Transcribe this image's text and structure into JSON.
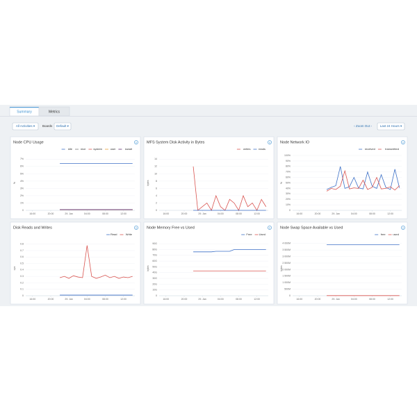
{
  "tabs": [
    "Summary",
    "Metrics"
  ],
  "toolbar": {
    "activities": "All Activities ▾",
    "boards_label": "Boards",
    "board": "Default ▾",
    "zoom": "‹ Zoom Out ›",
    "range": "Last 24 Hours ▾"
  },
  "panels": [
    {
      "title": "Node CPU Usage",
      "y_label": "%",
      "x": [
        6,
        7,
        8,
        9,
        10,
        11,
        12,
        13,
        14,
        15,
        16,
        17,
        18,
        19,
        20,
        21,
        22
      ],
      "xlim": [
        -1.5,
        22.5
      ],
      "xticks": [
        {
          "value": 0,
          "label": "16:00"
        },
        {
          "value": 4,
          "label": "20:00"
        },
        {
          "value": 8,
          "label": "29. Jan"
        },
        {
          "value": 12,
          "label": "04:00"
        },
        {
          "value": 16,
          "label": "08:00"
        },
        {
          "value": 20,
          "label": "12:00"
        }
      ],
      "ylim": [
        0,
        7.5
      ],
      "yticks": [
        0,
        {
          "value": 1,
          "label": "1%"
        },
        {
          "value": 2,
          "label": "2%"
        },
        {
          "value": 3,
          "label": "3%"
        },
        {
          "value": 4,
          "label": "4%"
        },
        {
          "value": 5,
          "label": "5%"
        },
        {
          "value": 6,
          "label": "6%"
        },
        {
          "value": 7,
          "label": "7%"
        }
      ],
      "series": [
        {
          "name": "idle",
          "color": "#3b6fc6",
          "values": [
            6.4,
            6.4,
            6.4,
            6.4,
            6.4,
            6.4,
            6.4,
            6.4,
            6.4,
            6.4,
            6.4,
            6.4,
            6.4,
            6.4,
            6.4,
            6.4,
            6.4
          ]
        },
        {
          "name": "nice",
          "color": "#7a7a7a",
          "values": [
            0.1,
            0.1,
            0.1,
            0.1,
            0.1,
            0.1,
            0.1,
            0.1,
            0.1,
            0.1,
            0.1,
            0.1,
            0.1,
            0.1,
            0.1,
            0.1,
            0.1
          ]
        },
        {
          "name": "system",
          "color": "#d9534f",
          "values": [
            0.1,
            0.1,
            0.1,
            0.1,
            0.1,
            0.1,
            0.1,
            0.1,
            0.1,
            0.1,
            0.1,
            0.1,
            0.1,
            0.1,
            0.1,
            0.1,
            0.1
          ]
        },
        {
          "name": "user",
          "color": "#e8a33a",
          "values": [
            0.1,
            0.1,
            0.1,
            0.1,
            0.1,
            0.1,
            0.1,
            0.1,
            0.1,
            0.1,
            0.1,
            0.1,
            0.1,
            0.1,
            0.1,
            0.1,
            0.1
          ]
        },
        {
          "name": "iowait",
          "color": "#5b2a6e",
          "values": [
            0.1,
            0.1,
            0.1,
            0.1,
            0.1,
            0.1,
            0.1,
            0.1,
            0.1,
            0.1,
            0.1,
            0.1,
            0.1,
            0.1,
            0.1,
            0.1,
            0.1
          ]
        }
      ]
    },
    {
      "title": "MFS System Disk Activity in Bytes",
      "y_label": "bytes",
      "x": [
        6,
        7,
        8,
        9,
        10,
        11,
        12,
        13,
        14,
        15,
        16,
        17,
        18,
        19,
        20,
        21,
        22
      ],
      "xlim": [
        -1.5,
        22.5
      ],
      "xticks": [
        {
          "value": 0,
          "label": "16:00"
        },
        {
          "value": 4,
          "label": "20:00"
        },
        {
          "value": 8,
          "label": "29. Jan"
        },
        {
          "value": 12,
          "label": "04:00"
        },
        {
          "value": 16,
          "label": "08:00"
        },
        {
          "value": 20,
          "label": "12:00"
        }
      ],
      "ylim": [
        0,
        15
      ],
      "yticks": [
        0,
        2,
        4,
        6,
        8,
        10,
        12,
        14
      ],
      "series": [
        {
          "name": "writes",
          "color": "#d9534f",
          "values": [
            12,
            0,
            1,
            2,
            0,
            4,
            1,
            0,
            3,
            2,
            0,
            4,
            1,
            2,
            0,
            3,
            1
          ]
        },
        {
          "name": "reads",
          "color": "#3b6fc6",
          "values": [
            0,
            0,
            0,
            0,
            0,
            0,
            0,
            0,
            0,
            0,
            0,
            0,
            0,
            0,
            0,
            0,
            0
          ]
        }
      ]
    },
    {
      "title": "Node Network IO",
      "y_label": "%",
      "x": [
        6,
        7,
        8,
        9,
        10,
        11,
        12,
        13,
        14,
        15,
        16,
        17,
        18,
        19,
        20,
        21,
        22
      ],
      "xlim": [
        -1.5,
        22.5
      ],
      "xticks": [
        {
          "value": 0,
          "label": "16:00"
        },
        {
          "value": 4,
          "label": "20:00"
        },
        {
          "value": 8,
          "label": "29. Jan"
        },
        {
          "value": 12,
          "label": "04:00"
        },
        {
          "value": 16,
          "label": "08:00"
        },
        {
          "value": 20,
          "label": "12:00"
        }
      ],
      "ylim": [
        0,
        100
      ],
      "yticks": [
        0,
        {
          "value": 10,
          "label": "10%"
        },
        {
          "value": 20,
          "label": "20%"
        },
        {
          "value": 30,
          "label": "30%"
        },
        {
          "value": 40,
          "label": "40%"
        },
        {
          "value": 50,
          "label": "50%"
        },
        {
          "value": 60,
          "label": "60%"
        },
        {
          "value": 70,
          "label": "70%"
        },
        {
          "value": 80,
          "label": "80%"
        },
        {
          "value": 90,
          "label": "90%"
        },
        {
          "value": 100,
          "label": "100%"
        }
      ],
      "series": [
        {
          "name": "received",
          "color": "#3b6fc6",
          "values": [
            38,
            42,
            45,
            80,
            40,
            43,
            60,
            41,
            39,
            70,
            44,
            40,
            65,
            42,
            38,
            75,
            41
          ]
        },
        {
          "name": "transmitted",
          "color": "#d9534f",
          "values": [
            35,
            40,
            38,
            44,
            72,
            39,
            41,
            40,
            55,
            38,
            42,
            60,
            39,
            40,
            43,
            37,
            45
          ]
        }
      ]
    },
    {
      "title": "Disk Reads and Writes",
      "y_label": "ops",
      "x": [
        6,
        7,
        8,
        9,
        10,
        11,
        12,
        13,
        14,
        15,
        16,
        17,
        18,
        19,
        20,
        21,
        22
      ],
      "xlim": [
        -1.5,
        22.5
      ],
      "xticks": [
        {
          "value": 0,
          "label": "16:00"
        },
        {
          "value": 4,
          "label": "20:00"
        },
        {
          "value": 8,
          "label": "29. Jan"
        },
        {
          "value": 12,
          "label": "04:00"
        },
        {
          "value": 16,
          "label": "08:00"
        },
        {
          "value": 20,
          "label": "12:00"
        }
      ],
      "ylim": [
        0,
        0.85
      ],
      "yticks": [
        0,
        0.1,
        0.2,
        0.3,
        0.4,
        0.5,
        0.6,
        0.7,
        0.8
      ],
      "series": [
        {
          "name": "Read",
          "color": "#3b6fc6",
          "values": [
            0.01,
            0.01,
            0.01,
            0.01,
            0.01,
            0.01,
            0.01,
            0.01,
            0.01,
            0.01,
            0.01,
            0.01,
            0.01,
            0.01,
            0.01,
            0.01,
            0.01
          ]
        },
        {
          "name": "Write",
          "color": "#d9534f",
          "values": [
            0.28,
            0.3,
            0.27,
            0.31,
            0.29,
            0.28,
            0.78,
            0.3,
            0.27,
            0.29,
            0.32,
            0.28,
            0.3,
            0.27,
            0.29,
            0.28,
            0.3
          ]
        }
      ]
    },
    {
      "title": "Node Memory Free vs Used",
      "y_label": "bytes",
      "x": [
        6,
        7,
        8,
        9,
        10,
        11,
        12,
        13,
        14,
        15,
        16,
        17,
        18,
        19,
        20,
        21,
        22
      ],
      "xlim": [
        -1.5,
        22.5
      ],
      "xticks": [
        {
          "value": 0,
          "label": "16:00"
        },
        {
          "value": 4,
          "label": "20:00"
        },
        {
          "value": 8,
          "label": "29. Jan"
        },
        {
          "value": 12,
          "label": "04:00"
        },
        {
          "value": 16,
          "label": "08:00"
        },
        {
          "value": 20,
          "label": "12:00"
        }
      ],
      "ylim": [
        0,
        95
      ],
      "yticks": [
        0,
        {
          "value": 10,
          "label": "10G"
        },
        {
          "value": 20,
          "label": "20G"
        },
        {
          "value": 30,
          "label": "30G"
        },
        {
          "value": 40,
          "label": "40G"
        },
        {
          "value": 50,
          "label": "50G"
        },
        {
          "value": 60,
          "label": "60G"
        },
        {
          "value": 70,
          "label": "70G"
        },
        {
          "value": 80,
          "label": "80G"
        },
        {
          "value": 90,
          "label": "90G"
        }
      ],
      "series": [
        {
          "name": "Free",
          "color": "#3b6fc6",
          "values": [
            76,
            76,
            76,
            76,
            76,
            77,
            77,
            77,
            77,
            80,
            80,
            80,
            80,
            80,
            80,
            80,
            80
          ]
        },
        {
          "name": "Used",
          "color": "#d9534f",
          "values": [
            43,
            43,
            43,
            43,
            43,
            43,
            43,
            43,
            43,
            43,
            43,
            43,
            43,
            43,
            43,
            43,
            43
          ]
        }
      ]
    },
    {
      "title": "Node Swap Space Available vs Used",
      "y_label": "bytes",
      "x": [
        6,
        7,
        8,
        9,
        10,
        11,
        12,
        13,
        14,
        15,
        16,
        17,
        18,
        19,
        20,
        21,
        22
      ],
      "xlim": [
        -1.5,
        22.5
      ],
      "xticks": [
        {
          "value": 0,
          "label": "16:00"
        },
        {
          "value": 4,
          "label": "20:00"
        },
        {
          "value": 8,
          "label": "29. Jan"
        },
        {
          "value": 12,
          "label": "04:00"
        },
        {
          "value": 16,
          "label": "08:00"
        },
        {
          "value": 20,
          "label": "12:00"
        }
      ],
      "ylim": [
        0,
        4200
      ],
      "yticks": [
        0,
        {
          "value": 500,
          "label": "500M"
        },
        {
          "value": 1000,
          "label": "1 000M"
        },
        {
          "value": 1500,
          "label": "1 500M"
        },
        {
          "value": 2000,
          "label": "2 000M"
        },
        {
          "value": 2500,
          "label": "2 500M"
        },
        {
          "value": 3000,
          "label": "3 000M"
        },
        {
          "value": 3500,
          "label": "3 500M"
        },
        {
          "value": 4000,
          "label": "4 000M"
        }
      ],
      "series": [
        {
          "name": "free",
          "color": "#3b6fc6",
          "values": [
            3900,
            3900,
            3900,
            3900,
            3900,
            3900,
            3900,
            3900,
            3900,
            3900,
            3900,
            3900,
            3900,
            3900,
            3900,
            3900,
            3900
          ]
        },
        {
          "name": "used",
          "color": "#d9534f",
          "values": [
            10,
            10,
            10,
            10,
            10,
            10,
            10,
            10,
            10,
            10,
            10,
            10,
            10,
            10,
            10,
            10,
            10
          ]
        }
      ]
    }
  ]
}
